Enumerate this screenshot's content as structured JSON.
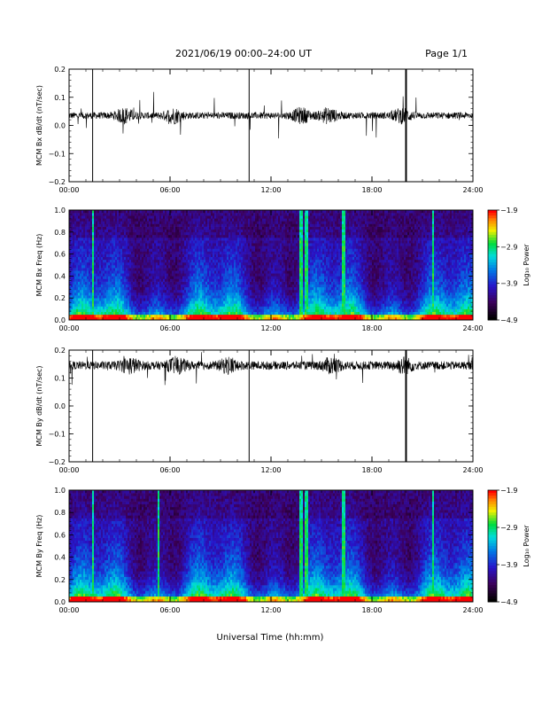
{
  "header": {
    "title": "2021/06/19   00:00–24:00 UT",
    "page": "Page 1/1"
  },
  "x_label": "Universal Time (hh:mm)",
  "chart_data": [
    {
      "type": "line",
      "name": "bx-dbdt",
      "ylabel": "MCM Bx dB/dt (nT/sec)",
      "ylim": [
        -0.2,
        0.2
      ],
      "yticks": [
        "0.2",
        "0.1",
        "0.0",
        "−0.1",
        "−0.2"
      ],
      "ytick_values": [
        0.2,
        0.1,
        0.0,
        -0.1,
        -0.2
      ],
      "xlim": [
        0,
        24
      ],
      "xticks": [
        "00:00",
        "06:00",
        "12:00",
        "18:00",
        "24:00"
      ],
      "baseline": 0.035,
      "noise_amplitude": 0.012,
      "spikes_hours": [
        1.4,
        10.7,
        20.0,
        20.05
      ],
      "active_hours": [
        3.3,
        6.2,
        13.8,
        15.4,
        19.8
      ]
    },
    {
      "type": "heatmap",
      "name": "bx-freq",
      "ylabel": "MCM Bx Freq (Hz)",
      "ylim": [
        0.0,
        1.0
      ],
      "yticks": [
        "1.0",
        "0.8",
        "0.6",
        "0.4",
        "0.2",
        "0.0"
      ],
      "ytick_values": [
        1.0,
        0.8,
        0.6,
        0.4,
        0.2,
        0.0
      ],
      "xlim": [
        0,
        24
      ],
      "xticks": [
        "00:00",
        "06:00",
        "12:00",
        "18:00",
        "24:00"
      ],
      "colorbar": {
        "label": "Log₁₀ Power",
        "ticks": [
          "−1.9",
          "−2.9",
          "−3.9",
          "−4.9"
        ],
        "tick_values": [
          -1.9,
          -2.9,
          -3.9,
          -4.9
        ]
      },
      "bright_lines_hours": [
        1.4,
        13.8,
        14.1,
        16.3,
        21.6
      ]
    },
    {
      "type": "line",
      "name": "by-dbdt",
      "ylabel": "MCM By dB/dt (nT/sec)",
      "ylim": [
        -0.2,
        0.2
      ],
      "yticks": [
        "0.2",
        "0.1",
        "0.0",
        "−0.1",
        "−0.2"
      ],
      "ytick_values": [
        0.2,
        0.1,
        0.0,
        -0.1,
        -0.2
      ],
      "xlim": [
        0,
        24
      ],
      "xticks": [
        "00:00",
        "06:00",
        "12:00",
        "18:00",
        "24:00"
      ],
      "baseline": 0.145,
      "noise_amplitude": 0.015,
      "spikes_hours": [
        1.4,
        10.7,
        20.0,
        20.05
      ],
      "active_hours": [
        3.6,
        6.4,
        9.5,
        15.6,
        19.9
      ]
    },
    {
      "type": "heatmap",
      "name": "by-freq",
      "ylabel": "MCM By Freq (Hz)",
      "ylim": [
        0.0,
        1.0
      ],
      "yticks": [
        "1.0",
        "0.8",
        "0.6",
        "0.4",
        "0.2",
        "0.0"
      ],
      "ytick_values": [
        1.0,
        0.8,
        0.6,
        0.4,
        0.2,
        0.0
      ],
      "xlim": [
        0,
        24
      ],
      "xticks": [
        "00:00",
        "06:00",
        "12:00",
        "18:00",
        "24:00"
      ],
      "colorbar": {
        "label": "Log₁₀ Power",
        "ticks": [
          "−1.9",
          "−2.9",
          "−3.9",
          "−4.9"
        ],
        "tick_values": [
          -1.9,
          -2.9,
          -3.9,
          -4.9
        ]
      },
      "bright_lines_hours": [
        1.4,
        5.3,
        13.8,
        14.1,
        16.3,
        21.6
      ]
    }
  ]
}
